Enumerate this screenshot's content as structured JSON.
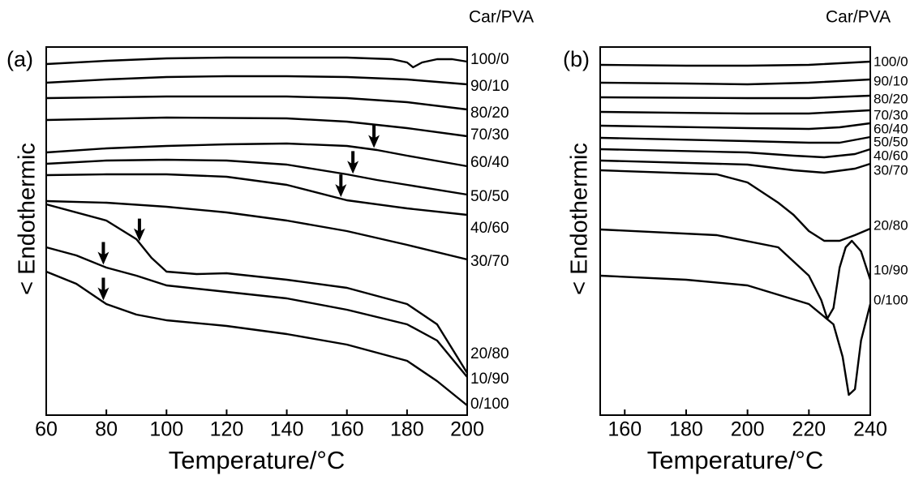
{
  "chart_data": [
    {
      "type": "line",
      "panel_label": "(a)",
      "legend_title": "Car/PVA",
      "x_label": "Temperature/°C",
      "y_label": "< Endothermic",
      "xlim": [
        60,
        200
      ],
      "ylim": [
        0,
        454
      ],
      "xticks": [
        60,
        80,
        100,
        120,
        140,
        160,
        180,
        200
      ],
      "series": [
        {
          "name": "100/0",
          "color": "#000000",
          "x": [
            60,
            80,
            100,
            120,
            140,
            160,
            175,
            180,
            182,
            185,
            190,
            195,
            200
          ],
          "values": [
            433,
            437,
            440,
            441,
            441,
            441,
            439,
            435,
            429,
            435,
            439,
            439,
            436
          ]
        },
        {
          "name": "90/10",
          "color": "#000000",
          "x": [
            60,
            80,
            100,
            120,
            140,
            160,
            180,
            200
          ],
          "values": [
            410,
            414,
            417,
            418,
            418,
            417,
            414,
            408
          ]
        },
        {
          "name": "80/20",
          "color": "#000000",
          "x": [
            60,
            100,
            140,
            160,
            180,
            200
          ],
          "values": [
            391,
            393,
            393,
            391,
            386,
            377
          ]
        },
        {
          "name": "70/30",
          "color": "#000000",
          "x": [
            60,
            100,
            140,
            160,
            180,
            200
          ],
          "values": [
            364,
            367,
            366,
            362,
            354,
            344
          ]
        },
        {
          "name": "60/40",
          "color": "#000000",
          "x": [
            60,
            80,
            100,
            120,
            140,
            160,
            170,
            180,
            200
          ],
          "values": [
            324,
            329,
            332,
            334,
            335,
            332,
            327,
            320,
            307
          ],
          "marker_x": 169
        },
        {
          "name": "50/50",
          "color": "#000000",
          "x": [
            60,
            80,
            100,
            120,
            140,
            160,
            170,
            180,
            200
          ],
          "values": [
            310,
            314,
            315,
            314,
            309,
            297,
            290,
            284,
            272
          ],
          "marker_x": 162
        },
        {
          "name": "40/60",
          "color": "#000000",
          "x": [
            60,
            80,
            100,
            120,
            140,
            160,
            180,
            200
          ],
          "values": [
            296,
            297,
            297,
            294,
            284,
            265,
            255,
            247
          ],
          "marker_x": 158
        },
        {
          "name": "30/70",
          "color": "#000000",
          "x": [
            60,
            80,
            100,
            120,
            140,
            160,
            180,
            200
          ],
          "values": [
            264,
            262,
            257,
            250,
            240,
            227,
            210,
            192
          ]
        },
        {
          "name": "20/80",
          "color": "#000000",
          "x": [
            60,
            80,
            90,
            95,
            100,
            110,
            120,
            140,
            160,
            180,
            190,
            200
          ],
          "values": [
            260,
            240,
            217,
            194,
            177,
            174,
            175,
            167,
            157,
            137,
            112,
            52
          ],
          "marker_x": 91
        },
        {
          "name": "10/90",
          "color": "#000000",
          "x": [
            60,
            70,
            80,
            90,
            100,
            120,
            140,
            160,
            180,
            190,
            200
          ],
          "values": [
            207,
            197,
            182,
            172,
            160,
            152,
            144,
            130,
            112,
            92,
            47
          ],
          "marker_x": 79
        },
        {
          "name": "0/100",
          "color": "#000000",
          "x": [
            60,
            70,
            80,
            90,
            100,
            120,
            140,
            160,
            180,
            190,
            200
          ],
          "values": [
            177,
            162,
            137,
            124,
            117,
            110,
            100,
            87,
            67,
            42,
            12
          ],
          "marker_x": 79
        }
      ]
    },
    {
      "type": "line",
      "panel_label": "(b)",
      "legend_title": "Car/PVA",
      "x_label": "Temperature/°C",
      "y_label": "< Endothermic",
      "xlim": [
        152,
        240
      ],
      "ylim": [
        0,
        454
      ],
      "xticks": [
        160,
        180,
        200,
        220,
        240
      ],
      "series": [
        {
          "name": "100/0",
          "color": "#000000",
          "x": [
            152,
            180,
            200,
            220,
            240
          ],
          "values": [
            432,
            431,
            431,
            432,
            436
          ]
        },
        {
          "name": "90/10",
          "color": "#000000",
          "x": [
            152,
            180,
            200,
            220,
            240
          ],
          "values": [
            410,
            409,
            408,
            410,
            414
          ]
        },
        {
          "name": "80/20",
          "color": "#000000",
          "x": [
            152,
            200,
            220,
            240
          ],
          "values": [
            392,
            391,
            391,
            394
          ]
        },
        {
          "name": "70/30",
          "color": "#000000",
          "x": [
            152,
            200,
            220,
            240
          ],
          "values": [
            374,
            372,
            372,
            376
          ]
        },
        {
          "name": "60/40",
          "color": "#000000",
          "x": [
            152,
            200,
            220,
            230,
            240
          ],
          "values": [
            357,
            354,
            353,
            355,
            360
          ]
        },
        {
          "name": "50/50",
          "color": "#000000",
          "x": [
            152,
            200,
            220,
            230,
            240
          ],
          "values": [
            342,
            338,
            336,
            336,
            343
          ]
        },
        {
          "name": "40/60",
          "color": "#000000",
          "x": [
            152,
            200,
            215,
            225,
            235,
            240
          ],
          "values": [
            328,
            324,
            320,
            318,
            322,
            328
          ]
        },
        {
          "name": "30/70",
          "color": "#000000",
          "x": [
            152,
            200,
            215,
            225,
            235,
            240
          ],
          "values": [
            314,
            309,
            302,
            299,
            304,
            310
          ]
        },
        {
          "name": "20/80",
          "color": "#000000",
          "x": [
            152,
            190,
            200,
            210,
            215,
            220,
            225,
            230,
            235,
            240
          ],
          "values": [
            302,
            297,
            287,
            262,
            247,
            227,
            215,
            215,
            222,
            230
          ]
        },
        {
          "name": "10/90",
          "color": "#000000",
          "x": [
            152,
            190,
            210,
            220,
            224,
            226,
            228,
            230,
            232,
            234,
            237,
            240
          ],
          "values": [
            229,
            222,
            207,
            172,
            142,
            119,
            132,
            182,
            207,
            215,
            202,
            167
          ]
        },
        {
          "name": "0/100",
          "color": "#000000",
          "x": [
            152,
            180,
            200,
            220,
            228,
            231,
            233,
            235,
            237,
            240
          ],
          "values": [
            172,
            167,
            160,
            137,
            112,
            72,
            25,
            32,
            92,
            137
          ]
        }
      ]
    }
  ]
}
